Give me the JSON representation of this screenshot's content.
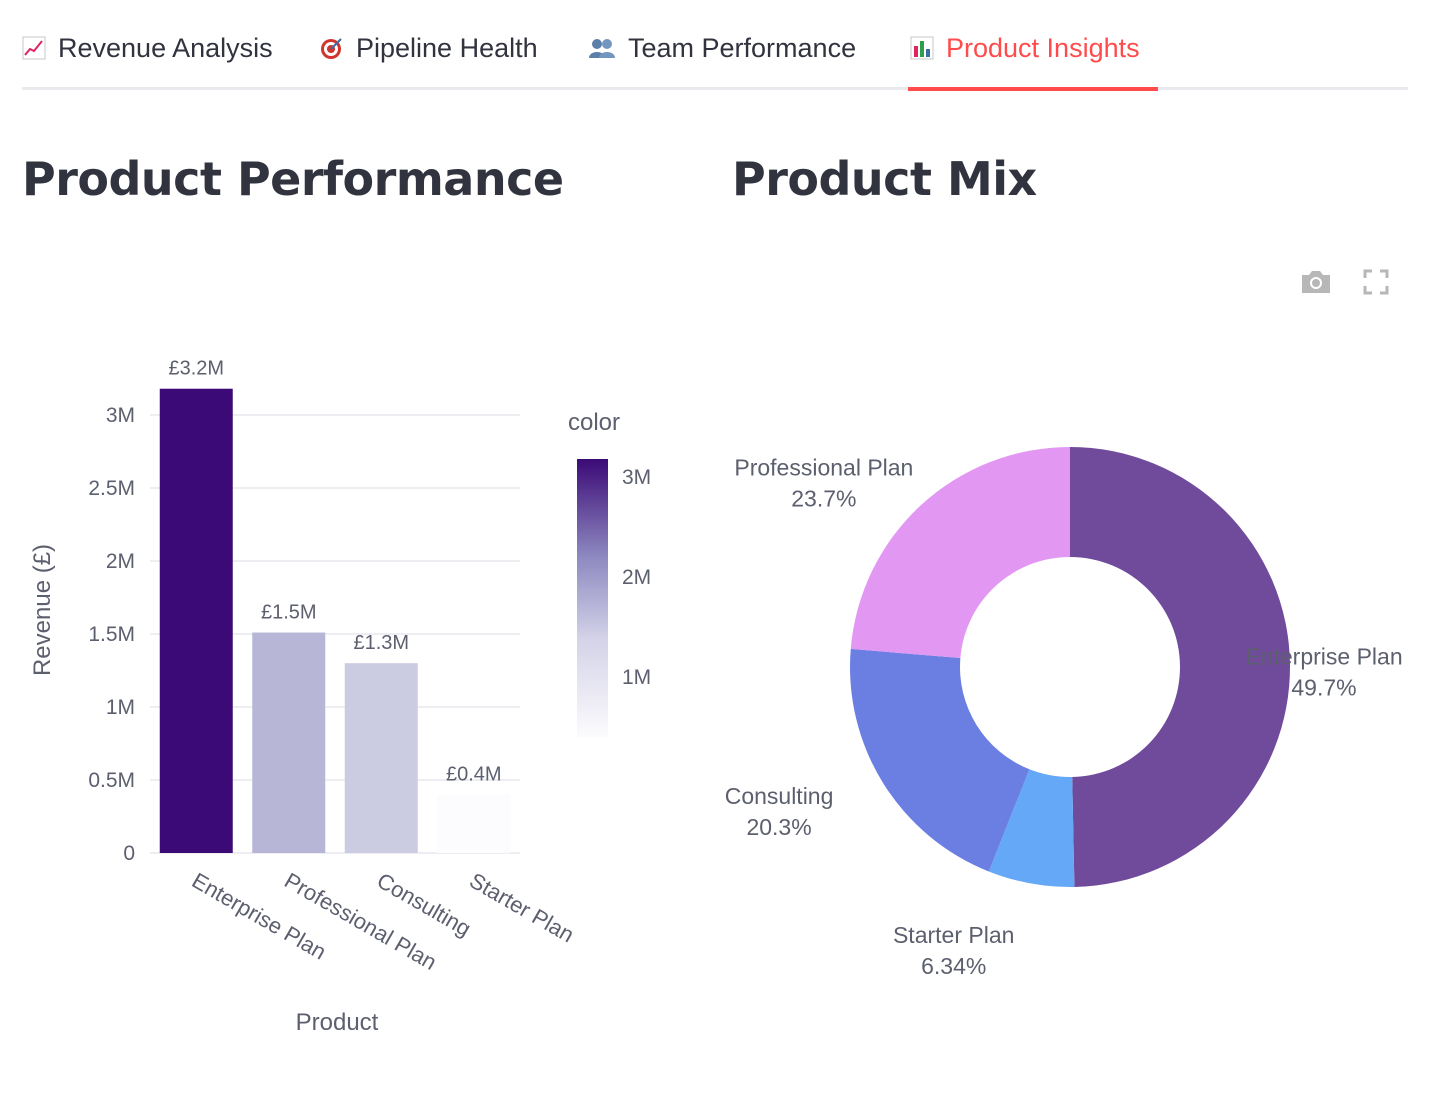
{
  "tabs": [
    {
      "label": "Revenue Analysis",
      "icon": "chart-increasing-icon",
      "active": false
    },
    {
      "label": "Pipeline Health",
      "icon": "target-icon",
      "active": false
    },
    {
      "label": "Team Performance",
      "icon": "people-icon",
      "active": false
    },
    {
      "label": "Product Insights",
      "icon": "bar-chart-icon",
      "active": true
    }
  ],
  "sections": {
    "left_title": "Product Performance",
    "right_title": "Product Mix"
  },
  "toolbar": {
    "camera_icon": "camera-icon",
    "fullscreen_icon": "fullscreen-icon"
  },
  "colors": {
    "accent": "#ff4b4b",
    "bar_scale_high": "#3b0a76",
    "bar_scale_low": "#fcfbfd"
  },
  "chart_data": [
    {
      "type": "bar",
      "title": "",
      "xlabel": "Product",
      "ylabel": "Revenue (£)",
      "categories": [
        "Enterprise Plan",
        "Professional Plan",
        "Consulting",
        "Starter Plan"
      ],
      "values": [
        3.18,
        1.51,
        1.3,
        0.4
      ],
      "value_unit": "M",
      "data_labels": [
        "£3.2M",
        "£1.5M",
        "£1.3M",
        "£0.4M"
      ],
      "ylim": [
        0,
        3.3
      ],
      "yticks": [
        "0",
        "0.5M",
        "1M",
        "1.5M",
        "2M",
        "2.5M",
        "3M"
      ],
      "grid": true,
      "colorbar": {
        "title": "color",
        "ticks": [
          "1M",
          "2M",
          "3M"
        ],
        "range": [
          0.4,
          3.18
        ]
      }
    },
    {
      "type": "pie",
      "hole": 0.5,
      "slices": [
        {
          "label": "Enterprise Plan",
          "value": 49.7,
          "text": "49.7%",
          "color": "#704b9c"
        },
        {
          "label": "Starter Plan",
          "value": 6.34,
          "text": "6.34%",
          "color": "#64a8f7"
        },
        {
          "label": "Consulting",
          "value": 20.3,
          "text": "20.3%",
          "color": "#6b7fe3"
        },
        {
          "label": "Professional Plan",
          "value": 23.7,
          "text": "23.7%",
          "color": "#e297f3"
        }
      ]
    }
  ]
}
